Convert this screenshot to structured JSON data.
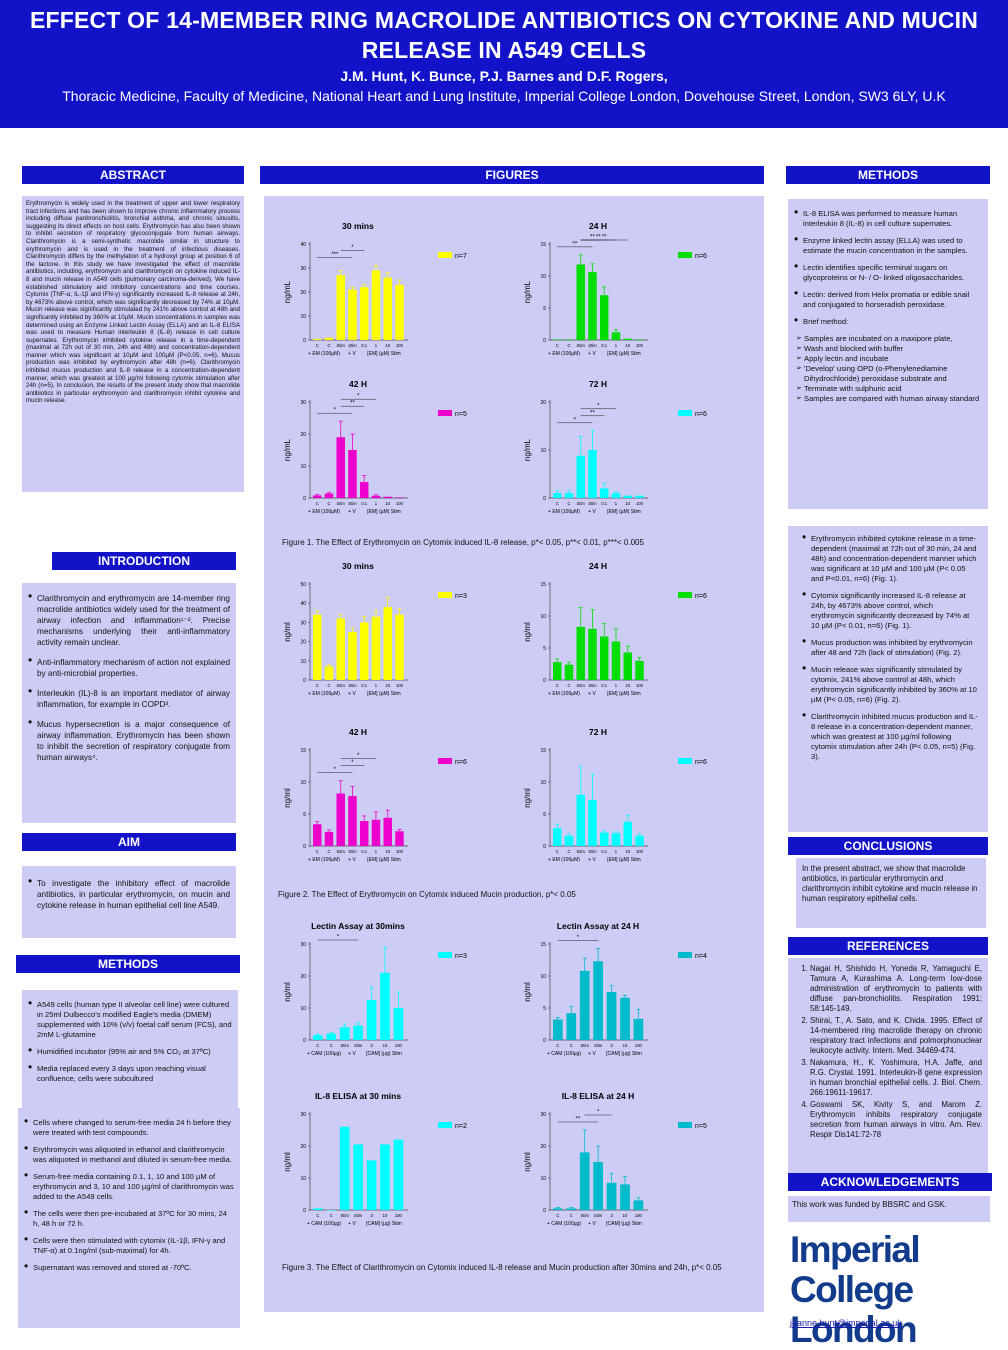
{
  "header": {
    "title": "EFFECT OF 14-MEMBER RING MACROLIDE ANTIBIOTICS ON CYTOKINE AND MUCIN RELEASE IN A549 CELLS",
    "authors": "J.M. Hunt, K. Bunce, P.J. Barnes and D.F. Rogers,",
    "affiliation": "Thoracic Medicine, Faculty of Medicine, National Heart and Lung Institute, Imperial College London, Dovehouse Street, London, SW3 6LY, U.K"
  },
  "sections": {
    "abstract": "ABSTRACT",
    "figures": "FIGURES",
    "methods": "METHODS",
    "introduction": "INTRODUCTION",
    "aim": "AIM",
    "methods2": "METHODS",
    "conclusions": "CONCLUSIONS",
    "references": "REFERENCES",
    "acknowledgements": "ACKNOWLEDGEMENTS"
  },
  "abstract_text": "Erythromycin is widely used in the treatment of upper and lower respiratory tract infections and has been shown to improve chronic inflammatory process including diffuse panbronchiolitis, bronchial asthma, and chronic sinusitis, suggesting its direct effects on host cells. Erythromycin has also been shown to inhibit secretion of respiratory glycoconjugate from human airways. Clarithromycin is a semi-synthetic macrolide similar in structure to erythromycin and is used in the treatment of infectious diseases. Clarithromycin differs by the methylation of a hydroxyl group at position 6 of the lactone. In this study we have investigated the effect of macrolide antibiotics, including, erythromycin and clarithromycin on cytokine induced IL-8 and mucin release in A549 cells (pulmonary carcinoma-derived). We have established stimulatory and inhibitory concentrations and time courses. Cytomix (TNF-α, IL-1β and IFN-γ) significantly increased IL-8 release at 24h, by 4673% above control, which was significantly decreased by 74% at 10µM. Mucin release was significantly stimulated by 241% above control at 48h and significantly inhibited by 360% at 10µM. Mucin concentrations in samples was determined using an Enzyme Linked Lectin Assay (ELLA) and an IL-8 ELISA was used to measure Human interleukin 8 (IL-8) release in cell culture supernates. Erythromycin inhibited cytokine release in a time-dependent (maximal at 72h out of 30 min, 24h and 48h) and concentration-dependent manner which was significant at 10µM and 100µM (P<0.05, n=6). Mucus production was inhibited by erythromycin after 48h (n=6). Clarithromycin inhibited mucus production and IL-8 release in a concentration-dependent manner, which was greatest at 100 µg/ml following cytomix stimulation after 24h (n=5). In conclusion, the results of the present study show that macrolide antibiotics in particular erythromycin and clarithromycin inhibit cytokine and mucin release.",
  "methods_right": {
    "bullets": [
      "IL-8 ELISA was performed to measure human interleukin 8 (IL-8) in cell culture supernates.",
      "Enzyme linked lectin assay (ELLA) was used to estimate the mucin concentration in the samples.",
      "Lectin identifies specific terminal sugars on glycoproteins or N- / O- linked oligosaccharides.",
      "Lectin: derived from Helix promatia or edible snail and conjugated to horseradish peroxidase.",
      "Brief method:"
    ],
    "steps": [
      "Samples are incubated on a maxipore plate,",
      "Wash and blocked with buffer",
      "Apply lectin and incubate",
      "'Develop' using OPD (o-Phenylenediamine Dihydrochloride) peroxidase substrate and",
      "Terminate with sulphuric acid",
      "Samples are compared with human airway standard"
    ]
  },
  "results": [
    "Erythromycin inhibited cytokine release in a time-dependent (maximal at 72h out of 30 min, 24 and 48h) and concentration-dependent manner which was significant at 10 µM and 100 µM (P< 0.05 and P<0.01, n=6) (Fig. 1).",
    "Cytomix significantly increased IL-8 release at 24h, by 4673% above control, which erythromycin significantly decreased by 74% at 10 µM (P< 0.01, n=6) (Fig. 1).",
    "Mucus production was inhibited by erythromycin after 48 and 72h (lack of stimulation) (Fig. 2).",
    "Mucin release was significantly stimulated by cytomix, 241% above control at 48h, which erythromycin significantly inhibited by 360% at 10 µM (P< 0.05, n=6) (Fig. 2).",
    "Clarithromycin inhibited mucus production and IL-8 release in a concentration-dependent manner, which was greatest at 100 µg/ml following cytomix stimulation after 24h (P< 0.05, n=5) (Fig. 3)."
  ],
  "conclusions_text": "In the present abstract, we show that macrolide antibiotics, in particular erythromycin and clarithromycin inhibit cytokine and mucin release in human respiratory epithelial cells.",
  "references": [
    "Nagai H, Shishido H, Yoneda R, Yamaguchi E, Tamura A, Kurashima A. Long-term low-dose administration of erythromycin to patients with diffuse pan-bronchiolitis. Respiration 1991; 58:145-149.",
    "Shirai, T., A. Sato, and K. Chida. 1995. Effect of 14-membered ring macrolide therapy on chronic respiratory tract infections and polmorphonuclear leukocyte activity. Intern. Med. 34469-474.",
    "Nakamura, H., K. Yoshimura, H.A. Jaffe, and R.G. Crystal. 1991. Interleukin-8 gene expression in human bronchial epithelial cells. J. Biol. Chem. 266:19611-19617.",
    "Goswami SK, Kivity S, and Marom Z. Erythromycin inhibits respiratory conjugate secretion from human airways in vitro. Am. Rev. Respir Dis141:72-78"
  ],
  "ack_text": "This work was funded by BBSRC and GSK.",
  "logo": {
    "line1": "Imperial College",
    "line2": "London"
  },
  "email": "joanne.hunt@imperial.ac.uk",
  "intro": [
    "Clarithromycin and erythromycin are 14-member ring macrolide antibiotics widely used for the treatment of airway infection and inflammation¹⁻². Precise mechanisms underlying their anti-inflammatory activity remain unclear.",
    "Anti-inflammatory mechanism of action not explained by anti-microbial properties.",
    "Interleukin (IL)-8 is an important mediator of airway inflammation, for example in COPD³.",
    "Mucus hypersecretion is a major consequence of airway inflammation. Erythromycin has been shown to inhibit the secretion of respiratory conjugate from human airways⁴."
  ],
  "aim_text": "To investigate the inhibitory effect of macrolide antibiotics, in particular erythromycin, on mucin and cytokine release in human epithelial cell line A549.",
  "methods_left_a": [
    "A549 cells (human type II alveolar cell line) were cultured in 25ml Dulbecco's modified Eagle's media (DMEM) supplemented with 10% (v/v) foetal calf serum (FCS), and 2mM L-glutamine",
    "Humidified incubator (95% air and 5% CO₂ at 37ºC)",
    "Media replaced every 3 days upon reaching visual confluence, cells were subcultured"
  ],
  "methods_left_b": [
    "Cells where changed to serum-free media 24 h before they were treated with test compounds.",
    "Erythromycin was aliquoted in ethanol and clarithromycin was aliquoted in methanol and diluted in serum-free media.",
    "Serum-free media containing 0.1, 1, 10 and 100 µM of erythromycin and 3, 10 and 100 µg/ml of clarithromycin was added to the A549 cells.",
    "The cells were then pre-incubated at 37ºC for 30 mins, 24 h, 48 h or 72 h.",
    "Cells were then stimulated with cytomix (IL-1β, IFN-γ and TNF-α) at 0.1ng/ml (sub-maximal) for 4h.",
    "Supernatant was removed and stored at -70ºC."
  ],
  "captions": {
    "fig1": "Figure 1. The Effect of Erythromycin on Cytomix induced IL-8 release, p*< 0.05, p**< 0.01, p***< 0.005",
    "fig2": "Figure 2. The Effect of Erythromycin on Cytomix induced Mucin production, p*< 0.05",
    "fig3": "Figure 3. The Effect of Clarithromycin on Cytomix induced IL-8 release and Mucin production after 30mins and 24h, p*< 0.05"
  },
  "chart_data": [
    {
      "type": "bar",
      "title": "30 mins",
      "ylabel": "ng/mL",
      "ylim": [
        0,
        40
      ],
      "yticks": [
        0,
        10,
        20,
        30,
        40
      ],
      "legend": "n=7",
      "color": "#ffff00",
      "categories": [
        "C",
        "C",
        "Stim",
        "Stim",
        "0.1",
        "1",
        "10",
        "100"
      ],
      "values": [
        0.5,
        1,
        27,
        21,
        22,
        29,
        26,
        23
      ],
      "errors": [
        0,
        0,
        2,
        1,
        1,
        2,
        2,
        2
      ],
      "xlabel_left": "+ EM (100µM)",
      "xlabel_mid": "+ V",
      "xlabel_right": "[EM] (µM) Stim",
      "sig": [
        "***",
        "*"
      ]
    },
    {
      "type": "bar",
      "title": "24 H",
      "ylabel": "ng/mL",
      "ylim": [
        0,
        15
      ],
      "yticks": [
        0,
        5,
        10,
        15
      ],
      "legend": "n=6",
      "color": "#00dd00",
      "categories": [
        "C",
        "C",
        "Stim",
        "Stim",
        "0.1",
        "1",
        "10",
        "100"
      ],
      "values": [
        0.1,
        0.1,
        11.8,
        10.6,
        7,
        1.2,
        0.2,
        0.1
      ],
      "errors": [
        0,
        0,
        1.5,
        1.3,
        1.3,
        0.4,
        0,
        0
      ],
      "xlabel_left": "+ EM (100µM)",
      "xlabel_mid": "+ V",
      "xlabel_right": "[EM] (µM) Stim",
      "sig": [
        "**",
        "**",
        "**",
        "**"
      ]
    },
    {
      "type": "bar",
      "title": "42 H",
      "ylabel": "ng/mL",
      "ylim": [
        0,
        30
      ],
      "yticks": [
        0,
        10,
        20,
        30
      ],
      "legend": "n=5",
      "color": "#ee00cc",
      "categories": [
        "C",
        "C",
        "Stim",
        "Stim",
        "0.1",
        "1",
        "10",
        "100"
      ],
      "values": [
        0.8,
        1.4,
        19,
        15,
        5,
        0.7,
        0.4,
        0.2
      ],
      "errors": [
        0.3,
        0.3,
        5,
        5,
        2,
        0.3,
        0,
        0
      ],
      "xlabel_left": "+ EM (100µM)",
      "xlabel_mid": "+ V",
      "xlabel_right": "[EM] (µM) Stim",
      "sig": [
        "*",
        "**",
        "*"
      ]
    },
    {
      "type": "bar",
      "title": "72 H",
      "ylabel": "ng/mL",
      "ylim": [
        0,
        20
      ],
      "yticks": [
        0,
        10,
        20
      ],
      "legend": "n=6",
      "color": "#00ffff",
      "categories": [
        "C",
        "C",
        "Stim",
        "Stim",
        "0.1",
        "1",
        "10",
        "100"
      ],
      "values": [
        1,
        1,
        8.8,
        10,
        2,
        1,
        0.5,
        0.5
      ],
      "errors": [
        0.5,
        0.5,
        4,
        4,
        1,
        0.3,
        0,
        0
      ],
      "xlabel_left": "+ EM (100µM)",
      "xlabel_mid": "+ V",
      "xlabel_right": "[EM] (µM) Stim",
      "sig": [
        "*",
        "**",
        "*"
      ]
    },
    {
      "type": "bar",
      "title": "30 mins",
      "ylabel": "ng/ml",
      "ylim": [
        0,
        50
      ],
      "yticks": [
        0,
        10,
        20,
        30,
        40,
        50
      ],
      "legend": "n=3",
      "color": "#ffff00",
      "categories": [
        "C",
        "C",
        "Stim",
        "Stim",
        "0.1",
        "1",
        "10",
        "100"
      ],
      "values": [
        34,
        7,
        32,
        25,
        30,
        33,
        38,
        34
      ],
      "errors": [
        2,
        1,
        2,
        2,
        3,
        3,
        5,
        3
      ],
      "xlabel_left": "+ EM (100µM)",
      "xlabel_mid": "+ V",
      "xlabel_right": "[EM] (µM) Stim",
      "sig": []
    },
    {
      "type": "bar",
      "title": "24 H",
      "ylabel": "ng/ml",
      "ylim": [
        0,
        15
      ],
      "yticks": [
        0,
        5,
        10,
        15
      ],
      "legend": "n=6",
      "color": "#00dd00",
      "categories": [
        "C",
        "C",
        "Stim",
        "Stim",
        "0.1",
        "1",
        "10",
        "100"
      ],
      "values": [
        2.8,
        2.4,
        8.3,
        8,
        6.8,
        6,
        4.3,
        3
      ],
      "errors": [
        0.5,
        0.4,
        3,
        3,
        2,
        2,
        1,
        0.5
      ],
      "xlabel_left": "+ EM (100µM)",
      "xlabel_mid": "+ V",
      "xlabel_right": "[EM] (µM) Stim",
      "sig": []
    },
    {
      "type": "bar",
      "title": "42 H",
      "ylabel": "ng/ml",
      "ylim": [
        0,
        15
      ],
      "yticks": [
        0,
        5,
        10,
        15
      ],
      "legend": "n=6",
      "color": "#ee00cc",
      "categories": [
        "C",
        "C",
        "Stim",
        "Stim",
        "0.1",
        "1",
        "10",
        "100"
      ],
      "values": [
        3.4,
        2.2,
        8.2,
        7.8,
        3.9,
        4.1,
        4.4,
        2.3
      ],
      "errors": [
        0.4,
        0.3,
        2,
        1.5,
        0.8,
        1.2,
        1.2,
        0.3
      ],
      "xlabel_left": "+ EM (100µM)",
      "xlabel_mid": "+ V",
      "xlabel_right": "[EM] (µM) Stim",
      "sig": [
        "*",
        "*",
        "*"
      ]
    },
    {
      "type": "bar",
      "title": "72 H",
      "ylabel": "ng/ml",
      "ylim": [
        0,
        15
      ],
      "yticks": [
        0,
        5,
        10,
        15
      ],
      "legend": "n=6",
      "color": "#00ffff",
      "categories": [
        "C",
        "C",
        "Stim",
        "Stim",
        "0.1",
        "1",
        "10",
        "100"
      ],
      "values": [
        2.8,
        1.6,
        8,
        7.2,
        2.1,
        2,
        3.8,
        1.6
      ],
      "errors": [
        0.6,
        0.3,
        4.5,
        4,
        0.3,
        0.2,
        1,
        0.3
      ],
      "xlabel_left": "+ EM (100µM)",
      "xlabel_mid": "+ V",
      "xlabel_right": "[EM] (µM) Stim",
      "sig": []
    },
    {
      "type": "bar",
      "title": "Lectin Assay at 30mins",
      "ylabel": "ng/ml",
      "ylim": [
        0,
        30
      ],
      "yticks": [
        0,
        10,
        20,
        30
      ],
      "legend": "n=3",
      "color": "#00ffff",
      "categories": [
        "C",
        "C",
        "Stim",
        "Stim",
        "3",
        "10",
        "100"
      ],
      "values": [
        1.5,
        2,
        4,
        4.5,
        12.5,
        21,
        10
      ],
      "errors": [
        0.3,
        0.3,
        1,
        1,
        4,
        8,
        5
      ],
      "xlabel_left": "+ CAM (100µg)",
      "xlabel_mid": "+ V",
      "xlabel_right": "[CAM] (µg) Stim",
      "sig": [
        "*"
      ]
    },
    {
      "type": "bar",
      "title": "Lectin Assay at 24 H",
      "ylabel": "ng/ml",
      "ylim": [
        0,
        15
      ],
      "yticks": [
        0,
        5,
        10,
        15
      ],
      "legend": "n=4",
      "color": "#00bbcc",
      "categories": [
        "C",
        "C",
        "Stim",
        "Stim",
        "3",
        "10",
        "100"
      ],
      "values": [
        3.2,
        4.2,
        10.8,
        12.3,
        7.5,
        6.6,
        3.3
      ],
      "errors": [
        0.3,
        1,
        2,
        2,
        1,
        0.4,
        1.5
      ],
      "xlabel_left": "+ CAM (100µg)",
      "xlabel_mid": "+ V",
      "xlabel_right": "[CAM] (µg) Stim",
      "sig": [
        "*"
      ]
    },
    {
      "type": "bar",
      "title": "IL-8 ELISA at 30 mins",
      "ylabel": "ng/ml",
      "ylim": [
        0,
        30
      ],
      "yticks": [
        0,
        10,
        20,
        30
      ],
      "legend": "n=2",
      "color": "#00ffff",
      "categories": [
        "C",
        "C",
        "Stim",
        "Stim",
        "3",
        "10",
        "100"
      ],
      "values": [
        0.5,
        0,
        26,
        20.5,
        15.5,
        20.5,
        22
      ],
      "errors": [
        0,
        0,
        0,
        0,
        0,
        0,
        0
      ],
      "xlabel_left": "+ CAM (100µg)",
      "xlabel_mid": "+ V",
      "xlabel_right": "[CAM] (µg) Stim",
      "sig": []
    },
    {
      "type": "bar",
      "title": "IL-8 ELISA at 24 H",
      "ylabel": "ng/ml",
      "ylim": [
        0,
        30
      ],
      "yticks": [
        0,
        10,
        20,
        30
      ],
      "legend": "n=5",
      "color": "#00bbcc",
      "categories": [
        "C",
        "C",
        "Stim",
        "Stim",
        "3",
        "10",
        "100"
      ],
      "values": [
        0.5,
        0.5,
        18,
        15,
        8.5,
        8,
        3
      ],
      "errors": [
        0.3,
        0.3,
        7,
        5,
        3,
        2.5,
        0.8
      ],
      "xlabel_left": "+ CAM (100µg)",
      "xlabel_mid": "+ V",
      "xlabel_right": "[CAM] (µg) Stim",
      "sig": [
        "**",
        "*"
      ]
    }
  ]
}
